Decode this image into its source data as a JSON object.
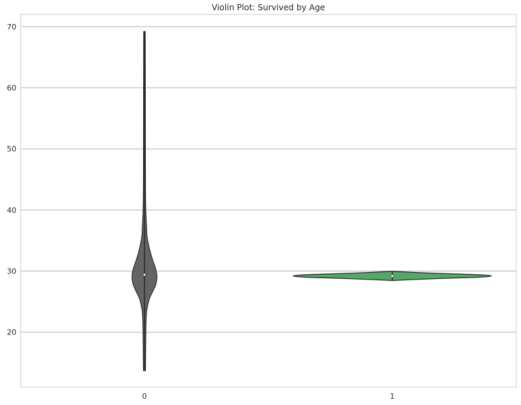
{
  "chart_data": {
    "type": "violin",
    "title": "Violin Plot: Survived by Age",
    "xlabel": "",
    "ylabel": "",
    "categories": [
      "0",
      "1"
    ],
    "ylim": [
      11,
      72
    ],
    "yticks": [
      20,
      30,
      40,
      50,
      60,
      70
    ],
    "grid": {
      "horizontal": true,
      "vertical": false
    },
    "colors": {
      "grid": "#b0b0b0",
      "frame": "#cccccc",
      "violin_outline": "#262626",
      "inner_box": "#262626",
      "median_point": "#ffffff"
    },
    "violins": [
      {
        "category": "0",
        "color": "#646464",
        "min": 13.7,
        "max": 69.2,
        "median": 29.4,
        "q1": 29.2,
        "q3": 29.6,
        "max_halfwidth": 0.05,
        "density": [
          [
            13.7,
            0.004
          ],
          [
            18.0,
            0.005
          ],
          [
            21.0,
            0.006
          ],
          [
            23.5,
            0.009
          ],
          [
            25.5,
            0.02
          ],
          [
            26.8,
            0.035
          ],
          [
            28.0,
            0.047
          ],
          [
            29.3,
            0.05
          ],
          [
            30.5,
            0.044
          ],
          [
            31.8,
            0.033
          ],
          [
            33.5,
            0.021
          ],
          [
            35.5,
            0.011
          ],
          [
            37.5,
            0.008
          ],
          [
            40.5,
            0.005
          ],
          [
            45.0,
            0.004
          ],
          [
            60.0,
            0.0035
          ],
          [
            69.2,
            0.003
          ]
        ]
      },
      {
        "category": "1",
        "color": "#55a868",
        "min": 28.45,
        "max": 29.95,
        "median": 29.2,
        "q1": 29.1,
        "q3": 29.3,
        "max_halfwidth": 0.4,
        "density": [
          [
            28.45,
            0.0
          ],
          [
            28.6,
            0.08
          ],
          [
            28.8,
            0.2
          ],
          [
            29.0,
            0.35
          ],
          [
            29.2,
            0.4
          ],
          [
            29.4,
            0.35
          ],
          [
            29.6,
            0.2
          ],
          [
            29.8,
            0.08
          ],
          [
            29.95,
            0.0
          ]
        ]
      }
    ]
  }
}
